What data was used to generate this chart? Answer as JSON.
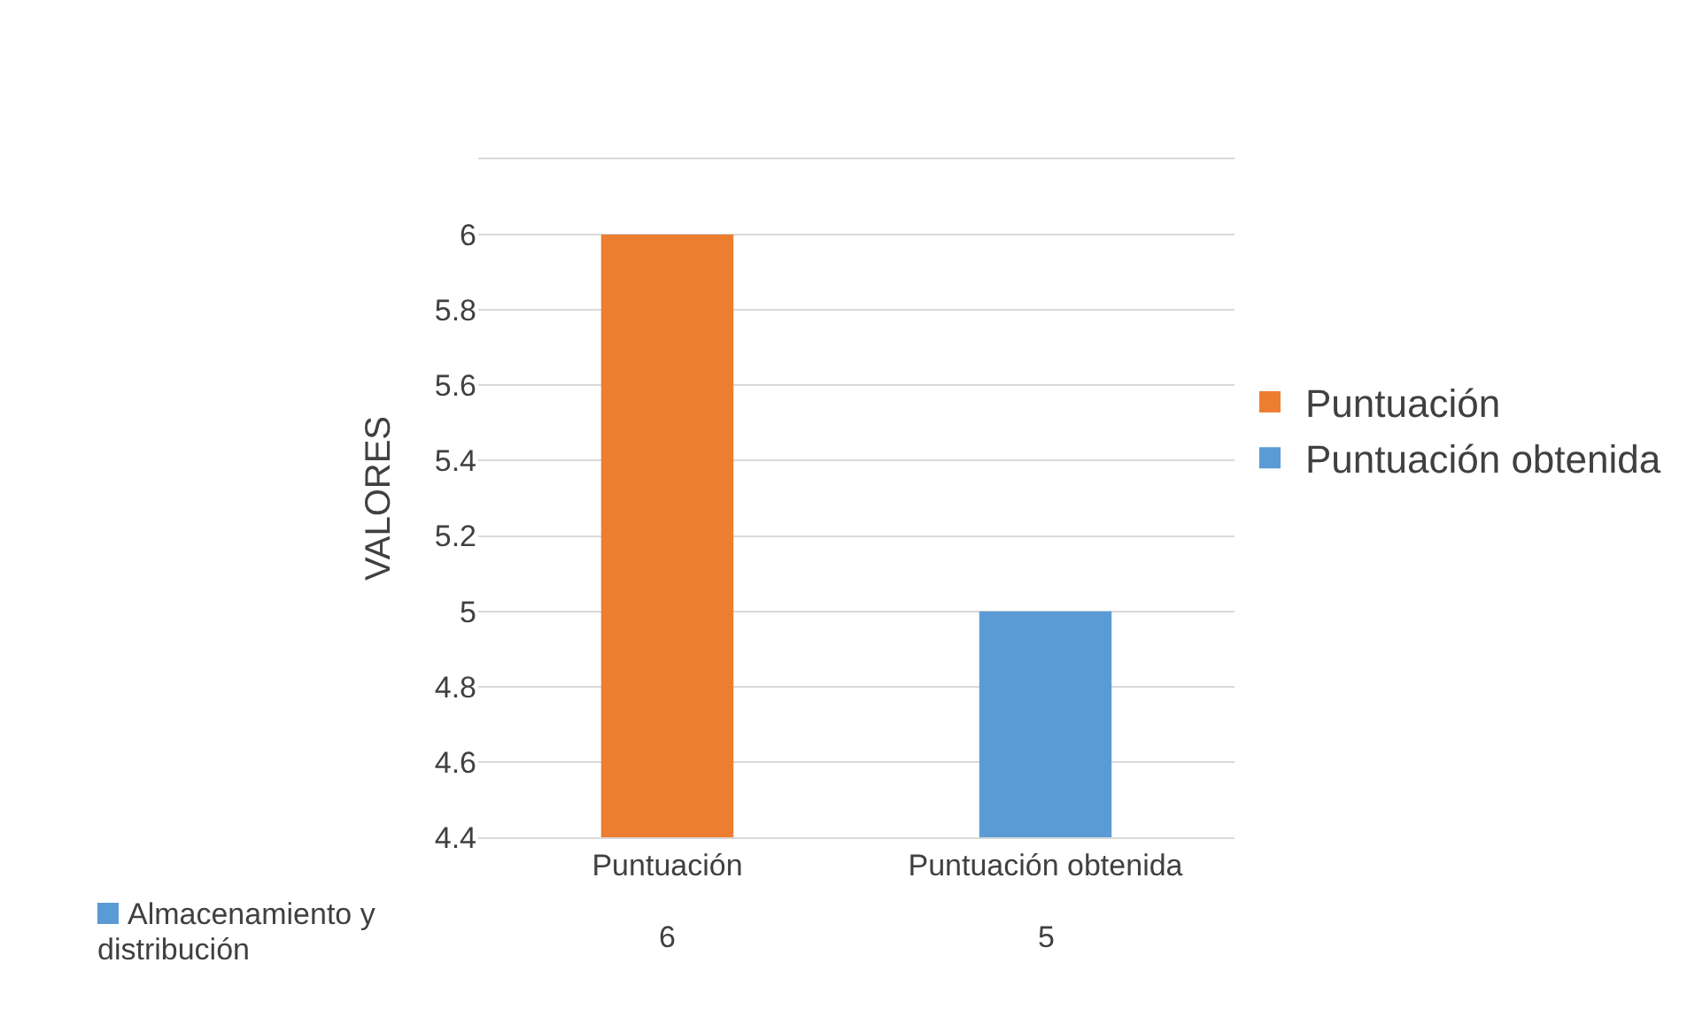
{
  "chart_data": {
    "type": "bar",
    "ylabel": "VALORES",
    "categories": [
      "Puntuación",
      "Puntuación obtenida"
    ],
    "series": [
      {
        "name": "Puntuación",
        "color": "#ed7d31",
        "values": [
          6,
          null
        ],
        "value_labels": [
          "6",
          null
        ]
      },
      {
        "name": "Puntuación obtenida",
        "color": "#5b9bd5",
        "values": [
          null,
          5
        ],
        "value_labels": [
          null,
          "5"
        ]
      }
    ],
    "annotations": [
      "Almacenamiento y distribución"
    ],
    "ylim": [
      4.4,
      6.2
    ],
    "yticks": [
      4.4,
      4.6,
      4.8,
      5,
      5.2,
      5.4,
      5.6,
      5.8,
      6
    ],
    "grid": "y",
    "legend": "right"
  }
}
